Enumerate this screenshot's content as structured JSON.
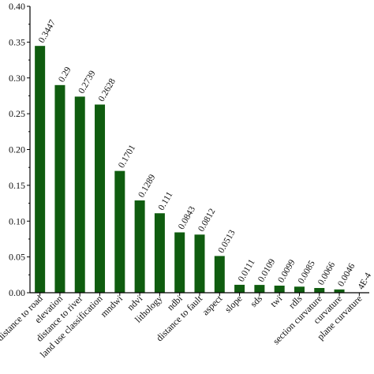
{
  "chart_data": {
    "type": "bar",
    "title": "",
    "xlabel": "",
    "ylabel": "",
    "ylim": [
      0,
      0.4
    ],
    "yticks": [
      "0.00",
      "0.05",
      "0.10",
      "0.15",
      "0.20",
      "0.25",
      "0.30",
      "0.35",
      "0.40"
    ],
    "grid": false,
    "bar_color": "#0f5c0f",
    "categories": [
      "distance to road",
      "elevation",
      "distance to river",
      "land use classification",
      "mndwi",
      "ndvi",
      "lithology",
      "ndbi",
      "distance to fault",
      "aspect",
      "slope",
      "sds",
      "twi",
      "rdls",
      "section curvature",
      "curvature",
      "plane curvature"
    ],
    "values": [
      0.3447,
      0.29,
      0.2739,
      0.2628,
      0.1701,
      0.1289,
      0.111,
      0.0843,
      0.0812,
      0.0513,
      0.0111,
      0.0109,
      0.0099,
      0.0085,
      0.0066,
      0.0046,
      0.0004
    ],
    "data_labels": [
      "0.3447",
      "0.29",
      "0.2739",
      "0.2628",
      "0.1701",
      "0.1289",
      "0.111",
      "0.0843",
      "0.0812",
      "0.0513",
      "0.0111",
      "0.0109",
      "0.0099",
      "0.0085",
      "0.0066",
      "0.0046",
      "4E-4"
    ]
  }
}
